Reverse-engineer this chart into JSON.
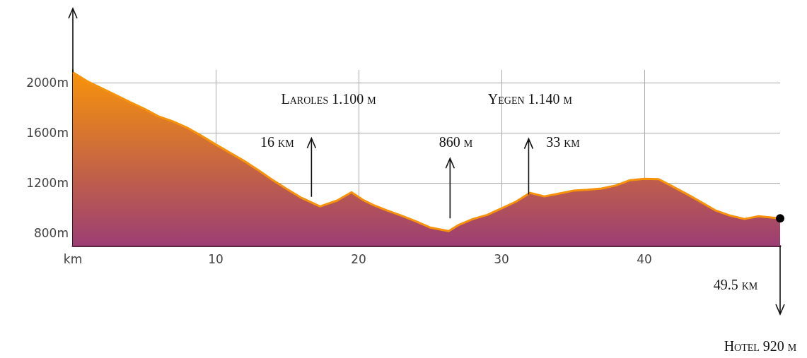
{
  "chart_data": {
    "type": "area",
    "x": [
      0,
      1,
      2,
      3,
      4,
      5,
      6,
      7,
      7.5,
      8,
      9,
      10,
      11,
      12,
      13,
      14,
      15,
      16,
      17.3,
      18.5,
      19.5,
      20.3,
      21,
      22,
      23,
      24,
      25,
      26.3,
      27,
      28,
      29,
      30,
      31,
      32,
      33,
      34,
      35,
      36,
      37,
      38,
      39,
      40,
      41,
      42,
      43,
      44,
      45,
      46,
      47,
      48,
      49.5
    ],
    "series": [
      {
        "color": "#f7930a",
        "values": [
          2080,
          2010,
          1955,
          1900,
          1843,
          1790,
          1730,
          1690,
          1665,
          1640,
          1575,
          1506,
          1440,
          1374,
          1300,
          1222,
          1150,
          1081,
          1013,
          1060,
          1126,
          1065,
          1025,
          980,
          940,
          895,
          845,
          817,
          865,
          913,
          945,
          997,
          1050,
          1121,
          1093,
          1115,
          1138,
          1145,
          1155,
          1180,
          1222,
          1233,
          1230,
          1170,
          1110,
          1045,
          980,
          940,
          913,
          935,
          918
        ]
      }
    ],
    "xlim": [
      0,
      49.5
    ],
    "xticks": [
      {
        "value": 0,
        "label": "km"
      },
      10,
      20,
      30,
      40
    ],
    "ylim": [
      700,
      2100
    ],
    "yticks": [
      {
        "value": 800,
        "label": "800m"
      },
      {
        "value": 1200,
        "label": "1200m"
      },
      {
        "value": 1600,
        "label": "1600m"
      },
      {
        "value": 2000,
        "label": "2000m"
      }
    ],
    "grid": true,
    "annotations": [
      "Laroles 1.100 m",
      "16 km",
      "860 m",
      "Yegen 1.140 m",
      {
        "text": "33 km",
        "x": 31.9,
        "y": 1107
      },
      "49.5 km",
      "Hotel 920 m"
    ]
  }
}
